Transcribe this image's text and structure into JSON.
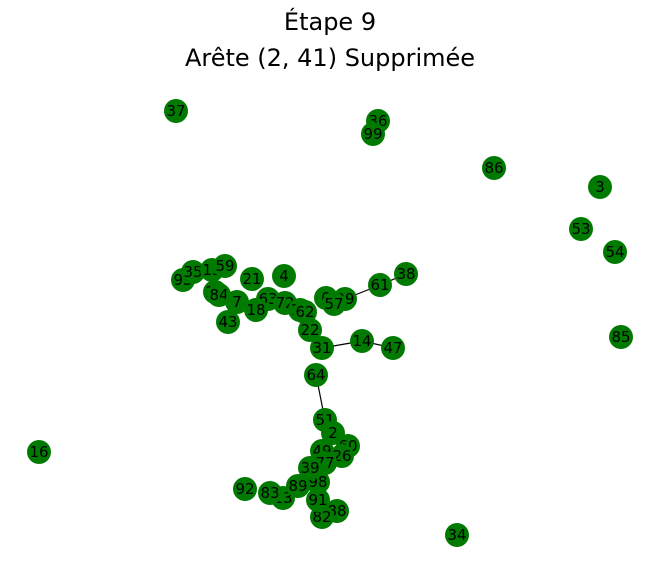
{
  "title_line1": "Étape 9",
  "title_line2": "Arête (2, 41) Supprimée",
  "colors": {
    "node": "#007a00",
    "edge": "#000000",
    "label": "#000000"
  },
  "graph": {
    "nodes": [
      "37",
      "36",
      "99",
      "86",
      "3",
      "53",
      "54",
      "85",
      "16",
      "34",
      "4",
      "38",
      "61",
      "0",
      "29",
      "57",
      "14",
      "47",
      "43",
      "93",
      "35",
      "15",
      "59",
      "25",
      "21",
      "84",
      "7",
      "63",
      "72",
      "18",
      "12",
      "13",
      "83",
      "92",
      "89",
      "88",
      "82",
      "91",
      "98",
      "51",
      "2",
      "49",
      "60",
      "26",
      "77",
      "64",
      "31",
      "39",
      "22",
      "62"
    ],
    "edges": [
      [
        "51",
        "64"
      ],
      [
        "14",
        "47"
      ],
      [
        "38",
        "61"
      ],
      [
        "61",
        "29"
      ],
      [
        "0",
        "29"
      ],
      [
        "31",
        "14"
      ]
    ]
  }
}
